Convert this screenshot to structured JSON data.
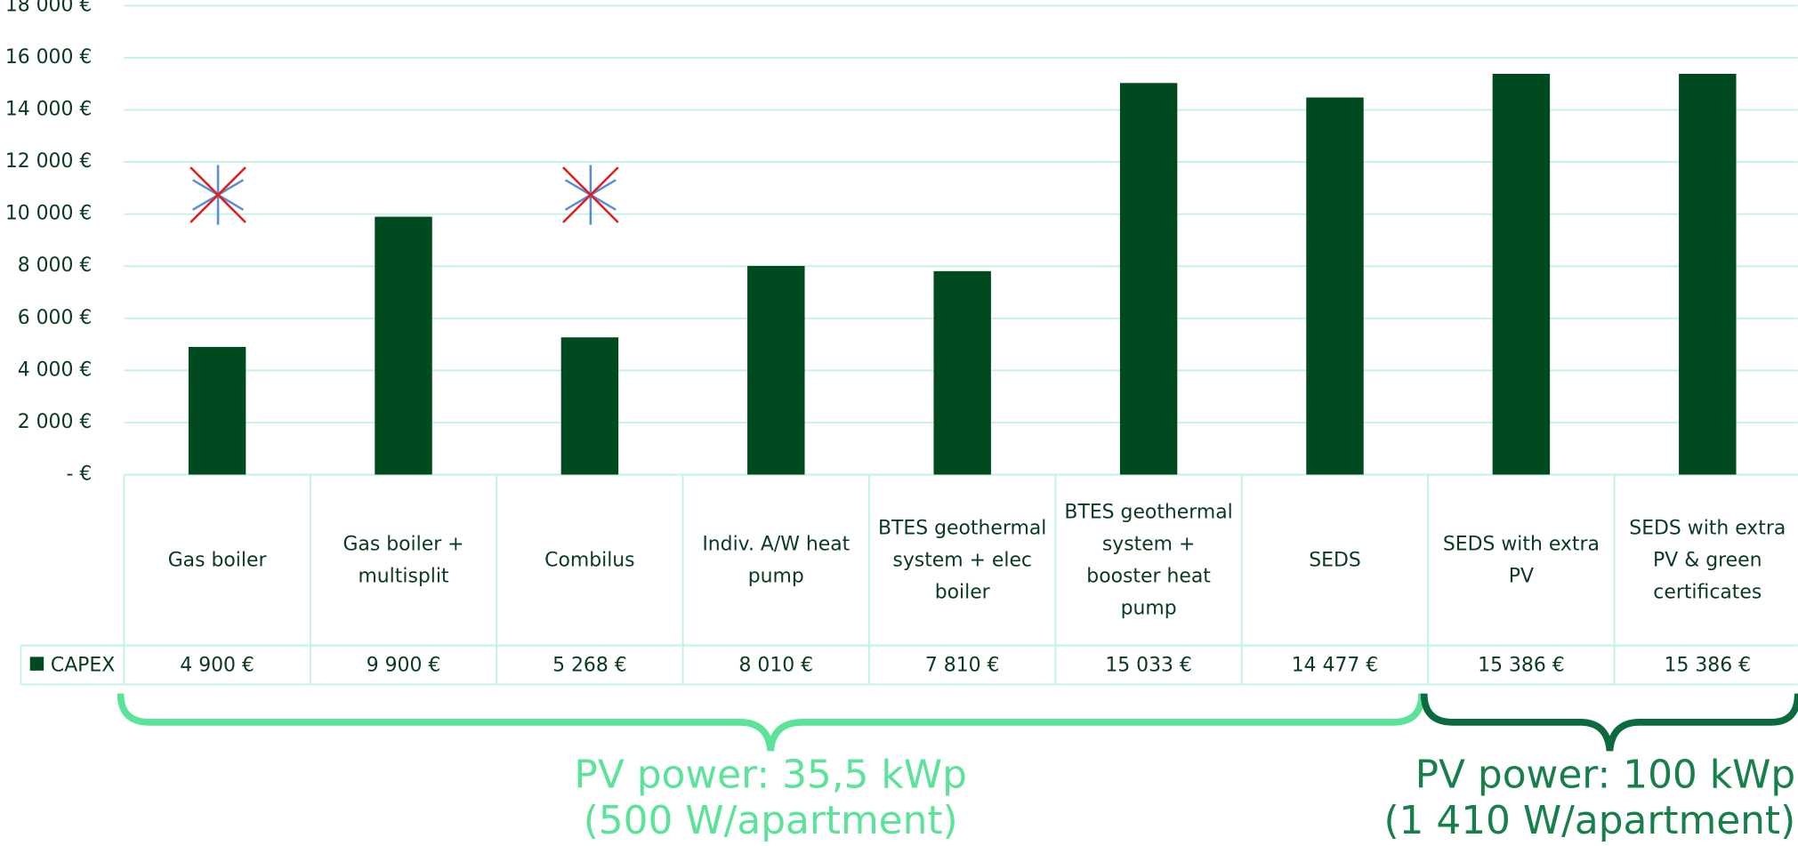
{
  "chart_data": {
    "type": "bar",
    "categories": [
      "Gas boiler",
      "Gas boiler + multisplit",
      "Combilus",
      "Indiv. A/W heat pump",
      "BTES geothermal system + elec boiler",
      "BTES geothermal system + booster heat pump",
      "SEDS",
      "SEDS with extra PV",
      "SEDS with extra PV & green certificates"
    ],
    "series": [
      {
        "name": "CAPEX",
        "color": "#004a20",
        "values": [
          4900,
          9900,
          5268,
          8010,
          7810,
          15033,
          14477,
          15386,
          15386
        ],
        "value_labels": [
          "4 900 €",
          "9 900 €",
          "5 268 €",
          "8 010 €",
          "7 810 €",
          "15 033 €",
          "14 477 €",
          "15 386 €",
          "15 386 €"
        ]
      }
    ],
    "ylim": [
      0,
      18000
    ],
    "yticks": [
      {
        "value": 0,
        "label": "-  €"
      },
      {
        "value": 2000,
        "label": "2 000 €"
      },
      {
        "value": 4000,
        "label": "4 000 €"
      },
      {
        "value": 6000,
        "label": "6 000 €"
      },
      {
        "value": 8000,
        "label": "8 000 €"
      },
      {
        "value": 10000,
        "label": "10 000 €"
      },
      {
        "value": 12000,
        "label": "12 000 €"
      },
      {
        "value": 14000,
        "label": "14 000 €"
      },
      {
        "value": 16000,
        "label": "16 000 €"
      },
      {
        "value": 18000,
        "label": "18 000 €"
      }
    ],
    "grid": true,
    "annotations": [
      "PV power: 35,5 kWp",
      "(500 W/apartment)",
      "PV power: 100 kWp",
      "(1 410 W/apartment)"
    ]
  }
}
